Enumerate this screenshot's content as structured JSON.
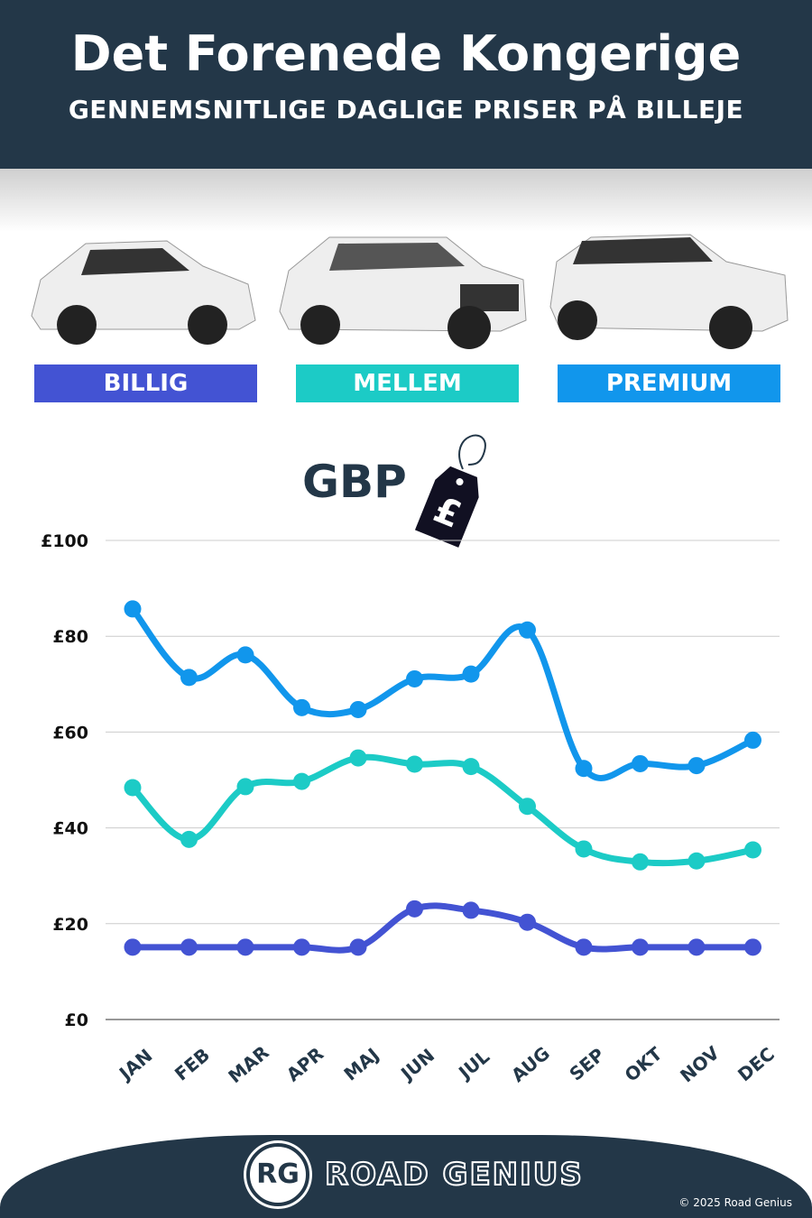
{
  "header": {
    "title": "Det Forenede Kongerige",
    "subtitle": "GENNEMSNITLIGE DAGLIGE PRISER PÅ BILLEJE"
  },
  "categories": [
    {
      "label": "BILLIG",
      "color": "#4353D3"
    },
    {
      "label": "MELLEM",
      "color": "#1CCBC6"
    },
    {
      "label": "PREMIUM",
      "color": "#1196EC"
    }
  ],
  "currency": {
    "label": "GBP",
    "tag_symbol": "£",
    "icon": "price-tag-icon"
  },
  "chart_data": {
    "type": "line",
    "categories": [
      "JAN",
      "FEB",
      "MAR",
      "APR",
      "MAJ",
      "JUN",
      "JUL",
      "AUG",
      "SEP",
      "OKT",
      "NOV",
      "DEC"
    ],
    "y_ticks": [
      "£0",
      "£20",
      "£40",
      "£60",
      "£80",
      "£100"
    ],
    "ylim": [
      0,
      100
    ],
    "grid": true,
    "series": [
      {
        "name": "PREMIUM",
        "color": "#1196EC",
        "values": [
          85.7,
          71.4,
          76.1,
          65.1,
          64.7,
          71.1,
          72.1,
          81.3,
          52.4,
          53.4,
          53.0,
          58.3
        ]
      },
      {
        "name": "MELLEM",
        "color": "#1CCBC6",
        "values": [
          48.4,
          37.6,
          48.6,
          49.7,
          54.6,
          53.3,
          52.8,
          44.5,
          35.6,
          32.9,
          33.1,
          35.4
        ]
      },
      {
        "name": "BILLIG",
        "color": "#4353D3",
        "values": [
          15.1,
          15.1,
          15.1,
          15.1,
          15.1,
          23.1,
          22.8,
          20.3,
          15.1,
          15.1,
          15.1,
          15.1
        ]
      }
    ]
  },
  "footer": {
    "logo": "RG",
    "brand": "ROAD GENIUS",
    "copyright": "© 2025 Road Genius"
  }
}
